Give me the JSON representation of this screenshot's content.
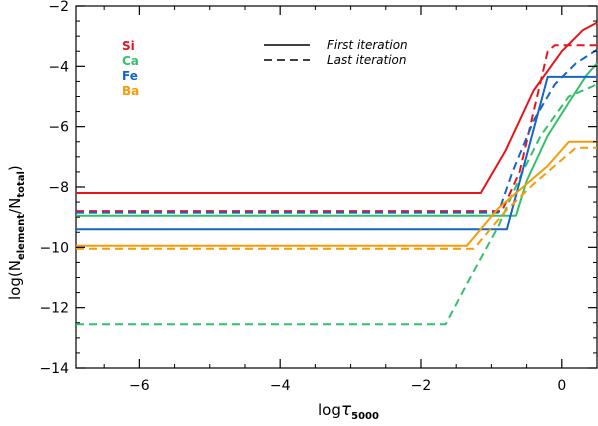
{
  "chart_data": {
    "type": "line",
    "xlabel": {
      "main": "log",
      "tau": "τ",
      "sub": "5000"
    },
    "ylabel": {
      "main": "log(N",
      "sub1": "element",
      "mid": "/N",
      "sub2": "total",
      "end": ")"
    },
    "xlim": [
      -6.9,
      0.5
    ],
    "ylim": [
      -14,
      -2
    ],
    "xticks": [
      -6,
      -4,
      -2,
      0
    ],
    "yticks": [
      -14,
      -12,
      -10,
      -8,
      -6,
      -4,
      -2
    ],
    "xtick_labels": [
      "−6",
      "−4",
      "−2",
      "0"
    ],
    "ytick_labels": [
      "−14",
      "−12",
      "−10",
      "−8",
      "−6",
      "−4",
      "−2"
    ],
    "legend_elements": [
      {
        "name": "Si",
        "color": "#e8141c"
      },
      {
        "name": "Ca",
        "color": "#34c06a"
      },
      {
        "name": "Fe",
        "color": "#1565c8"
      },
      {
        "name": "Ba",
        "color": "#f49c0a"
      }
    ],
    "legend_styles": [
      {
        "name": "First iteration",
        "dash": "solid"
      },
      {
        "name": "Last iteration",
        "dash": "dashed"
      }
    ],
    "series": [
      {
        "name": "Si",
        "iteration": "First iteration",
        "color": "#e8141c",
        "dash": "solid",
        "x": [
          -6.9,
          -1.15,
          -0.8,
          -0.4,
          0.0,
          0.3,
          0.5
        ],
        "y": [
          -8.2,
          -8.2,
          -6.8,
          -4.8,
          -3.5,
          -2.8,
          -2.55
        ]
      },
      {
        "name": "Si",
        "iteration": "Last iteration",
        "color": "#e8141c",
        "dash": "dashed",
        "x": [
          -6.9,
          -0.85,
          -0.6,
          -0.4,
          -0.3,
          -0.2,
          -0.1,
          0.5
        ],
        "y": [
          -8.8,
          -8.8,
          -7.5,
          -5.5,
          -4.5,
          -3.5,
          -3.3,
          -3.3
        ]
      },
      {
        "name": "Ca",
        "iteration": "First iteration",
        "color": "#34c06a",
        "dash": "solid",
        "x": [
          -6.9,
          -0.65,
          -0.5,
          -0.2,
          0.1,
          0.35,
          0.5
        ],
        "y": [
          -8.95,
          -8.95,
          -7.8,
          -6.3,
          -5.2,
          -4.3,
          -3.9
        ]
      },
      {
        "name": "Ca",
        "iteration": "Last iteration",
        "color": "#34c06a",
        "dash": "dashed",
        "x": [
          -6.9,
          -1.65,
          -1.3,
          -0.9,
          -0.6,
          -0.3,
          0.1,
          0.5
        ],
        "y": [
          -12.55,
          -12.55,
          -11.0,
          -9.3,
          -7.7,
          -6.3,
          -5.0,
          -4.6
        ]
      },
      {
        "name": "Fe",
        "iteration": "First iteration",
        "color": "#1565c8",
        "dash": "solid",
        "x": [
          -6.9,
          -0.78,
          -0.2,
          0.5
        ],
        "y": [
          -9.4,
          -9.4,
          -4.35,
          -4.35
        ]
      },
      {
        "name": "Fe",
        "iteration": "Last iteration",
        "color": "#1565c8",
        "dash": "dashed",
        "x": [
          -6.9,
          -0.9,
          -0.7,
          -0.4,
          -0.1,
          0.2,
          0.5
        ],
        "y": [
          -8.85,
          -8.85,
          -7.5,
          -5.8,
          -4.6,
          -3.9,
          -3.45
        ]
      },
      {
        "name": "Ba",
        "iteration": "First iteration",
        "color": "#f49c0a",
        "dash": "solid",
        "x": [
          -6.9,
          -1.35,
          -0.9,
          -0.5,
          -0.2,
          0.1,
          0.5
        ],
        "y": [
          -9.95,
          -9.95,
          -8.7,
          -7.9,
          -7.3,
          -6.5,
          -6.5
        ]
      },
      {
        "name": "Ba",
        "iteration": "Last iteration",
        "color": "#f49c0a",
        "dash": "dashed",
        "x": [
          -6.9,
          -1.25,
          -0.8,
          -0.4,
          0.0,
          0.2,
          0.5
        ],
        "y": [
          -10.05,
          -10.05,
          -8.8,
          -7.9,
          -7.1,
          -6.7,
          -6.7
        ]
      }
    ]
  }
}
